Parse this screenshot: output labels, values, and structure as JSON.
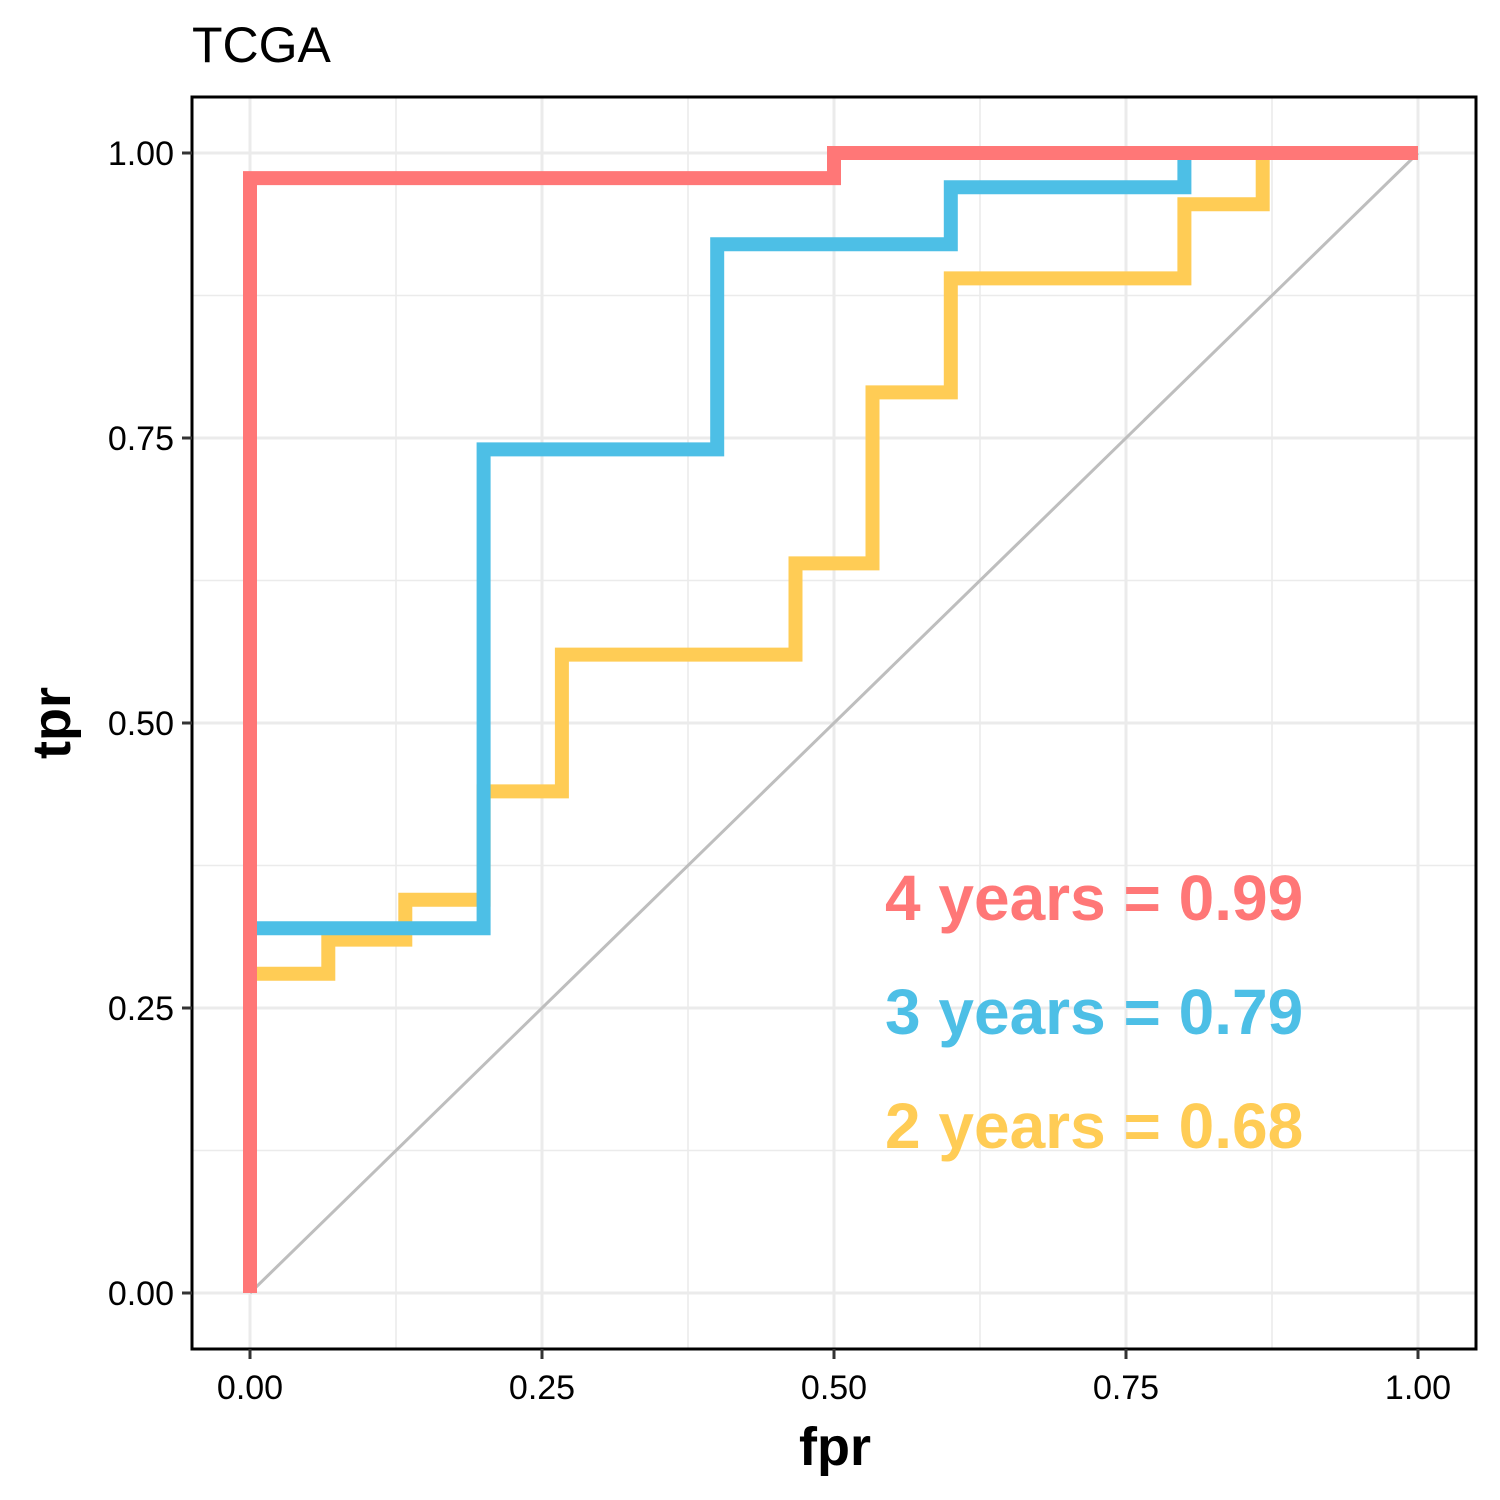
{
  "chart_data": {
    "type": "line",
    "title": "TCGA",
    "xlabel": "fpr",
    "ylabel": "tpr",
    "xlim": [
      0,
      1
    ],
    "ylim": [
      0,
      1
    ],
    "x_ticks": [
      "0.00",
      "0.25",
      "0.50",
      "0.75",
      "1.00"
    ],
    "y_ticks": [
      "0.00",
      "0.25",
      "0.50",
      "0.75",
      "1.00"
    ],
    "grid": true,
    "reference_line": {
      "x": [
        0,
        1
      ],
      "y": [
        0,
        1
      ],
      "color": "#bebebe"
    },
    "series": [
      {
        "name": "4 years",
        "color": "#ff7777",
        "x": [
          0,
          0,
          0.5,
          0.5,
          1.0
        ],
        "y": [
          0,
          0.978,
          0.978,
          1.0,
          1.0
        ]
      },
      {
        "name": "3 years",
        "color": "#4dbfe6",
        "x": [
          0,
          0,
          0.2,
          0.2,
          0.4,
          0.4,
          0.6,
          0.6,
          0.8,
          0.8,
          1.0
        ],
        "y": [
          0,
          0.32,
          0.32,
          0.74,
          0.74,
          0.92,
          0.92,
          0.97,
          0.97,
          1.0,
          1.0
        ]
      },
      {
        "name": "2 years",
        "color": "#ffcc55",
        "x": [
          0,
          0,
          0.067,
          0.067,
          0.133,
          0.133,
          0.2,
          0.2,
          0.267,
          0.267,
          0.467,
          0.467,
          0.533,
          0.533,
          0.6,
          0.6,
          0.8,
          0.8,
          0.867,
          0.867,
          1.0
        ],
        "y": [
          0,
          0.28,
          0.28,
          0.31,
          0.31,
          0.345,
          0.345,
          0.44,
          0.44,
          0.56,
          0.56,
          0.64,
          0.64,
          0.79,
          0.79,
          0.89,
          0.89,
          0.955,
          0.955,
          1.0,
          1.0
        ]
      }
    ],
    "annotations": [
      {
        "text": "4 years =  0.99",
        "color": "#ff7777"
      },
      {
        "text": "3 years =  0.79",
        "color": "#4dbfe6"
      },
      {
        "text": "2 years =  0.68",
        "color": "#ffcc55"
      }
    ]
  }
}
